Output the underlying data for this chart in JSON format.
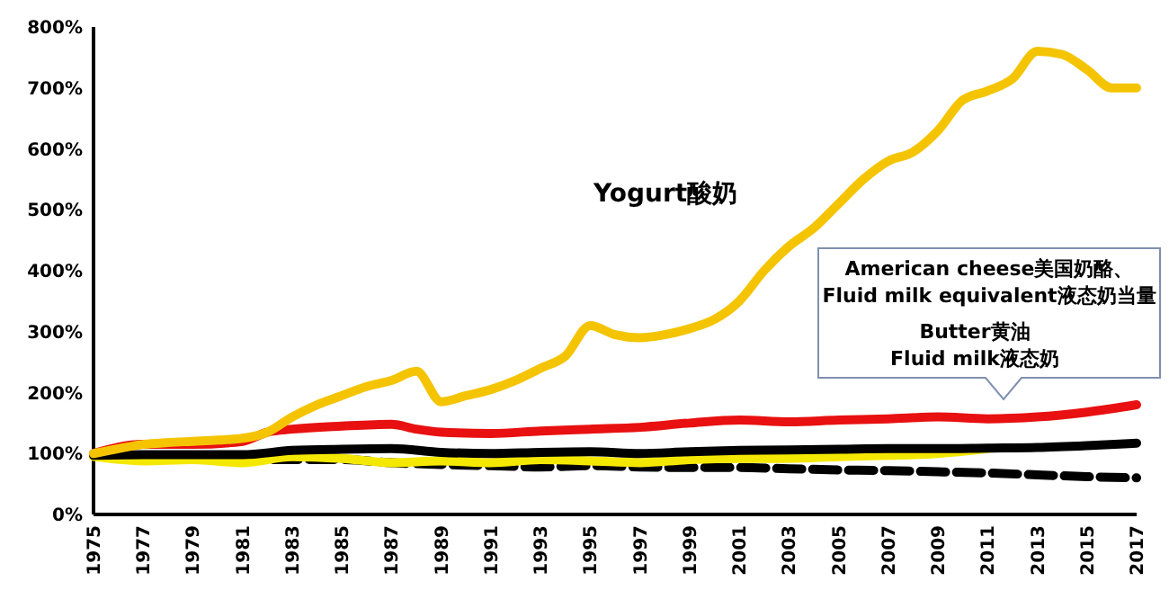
{
  "chart_data": {
    "type": "line",
    "xlim": [
      1975,
      2017
    ],
    "xticks": [
      1975,
      1977,
      1979,
      1981,
      1983,
      1985,
      1987,
      1989,
      1991,
      1993,
      1995,
      1997,
      1999,
      2001,
      2003,
      2005,
      2007,
      2009,
      2011,
      2013,
      2015,
      2017
    ],
    "ylim": [
      0,
      800
    ],
    "yticks": [
      {
        "value": 0,
        "label": "0%"
      },
      {
        "value": 100,
        "label": "100%"
      },
      {
        "value": 200,
        "label": "200%"
      },
      {
        "value": 300,
        "label": "300%"
      },
      {
        "value": 400,
        "label": "400%"
      },
      {
        "value": 500,
        "label": "500%"
      },
      {
        "value": 600,
        "label": "600%"
      },
      {
        "value": 700,
        "label": "700%"
      },
      {
        "value": 800,
        "label": "800%"
      }
    ],
    "grid": false,
    "marker": "none",
    "series": [
      {
        "color": "#000000",
        "line_style": "dashed",
        "x": [
          1975,
          1977,
          1979,
          1981,
          1983,
          1985,
          1987,
          1989,
          1991,
          1993,
          1995,
          1997,
          1999,
          2001,
          2003,
          2005,
          2007,
          2009,
          2011,
          2013,
          2015,
          2017
        ],
        "values": [
          97,
          92,
          92,
          90,
          90,
          90,
          85,
          82,
          80,
          78,
          80,
          78,
          77,
          77,
          75,
          73,
          72,
          70,
          68,
          65,
          62,
          60
        ]
      },
      {
        "color": "#f5e800",
        "line_style": "solid",
        "x": [
          1975,
          1977,
          1979,
          1981,
          1983,
          1985,
          1987,
          1989,
          1991,
          1993,
          1995,
          1997,
          1999,
          2001,
          2003,
          2005,
          2007,
          2009,
          2011
        ],
        "values": [
          95,
          88,
          90,
          85,
          95,
          92,
          85,
          88,
          85,
          90,
          88,
          85,
          90,
          92,
          92,
          95,
          97,
          100,
          108
        ]
      },
      {
        "color": "#000000",
        "line_style": "solid",
        "x": [
          1975,
          1977,
          1979,
          1981,
          1983,
          1985,
          1987,
          1989,
          1991,
          1993,
          1995,
          1997,
          1999,
          2001,
          2003,
          2005,
          2007,
          2009,
          2011,
          2013,
          2015,
          2017
        ],
        "values": [
          97,
          98,
          98,
          98,
          105,
          107,
          108,
          102,
          100,
          102,
          103,
          100,
          103,
          105,
          106,
          107,
          108,
          108,
          109,
          110,
          113,
          117
        ]
      },
      {
        "color": "#e81010",
        "line_style": "solid",
        "x": [
          1975,
          1977,
          1979,
          1981,
          1982,
          1983,
          1985,
          1987,
          1988,
          1989,
          1991,
          1993,
          1995,
          1997,
          1999,
          2001,
          2003,
          2005,
          2007,
          2009,
          2011,
          2013,
          2015,
          2017
        ],
        "values": [
          100,
          115,
          115,
          120,
          135,
          140,
          145,
          148,
          140,
          135,
          133,
          137,
          140,
          143,
          150,
          155,
          152,
          155,
          157,
          160,
          157,
          160,
          168,
          180
        ]
      },
      {
        "color": "#f5c400",
        "line_style": "solid",
        "x": [
          1975,
          1976,
          1977,
          1978,
          1979,
          1980,
          1981,
          1982,
          1983,
          1984,
          1985,
          1986,
          1987,
          1988,
          1989,
          1990,
          1991,
          1992,
          1993,
          1994,
          1995,
          1996,
          1997,
          1998,
          1999,
          2000,
          2001,
          2002,
          2003,
          2004,
          2005,
          2006,
          2007,
          2008,
          2009,
          2010,
          2011,
          2012,
          2013,
          2014,
          2015,
          2016,
          2017
        ],
        "values": [
          100,
          108,
          115,
          118,
          120,
          122,
          125,
          135,
          160,
          180,
          195,
          210,
          220,
          235,
          185,
          195,
          205,
          220,
          240,
          260,
          310,
          295,
          290,
          295,
          305,
          320,
          350,
          400,
          440,
          470,
          510,
          550,
          580,
          595,
          630,
          680,
          695,
          715,
          760,
          755,
          730,
          700,
          700
        ]
      }
    ],
    "annotations": [
      "Yogurt酸奶",
      "American cheese美国奶酪、",
      "Fluid milk equivalent液态奶当量",
      "Butter黄油",
      "Fluid milk液态奶"
    ]
  }
}
